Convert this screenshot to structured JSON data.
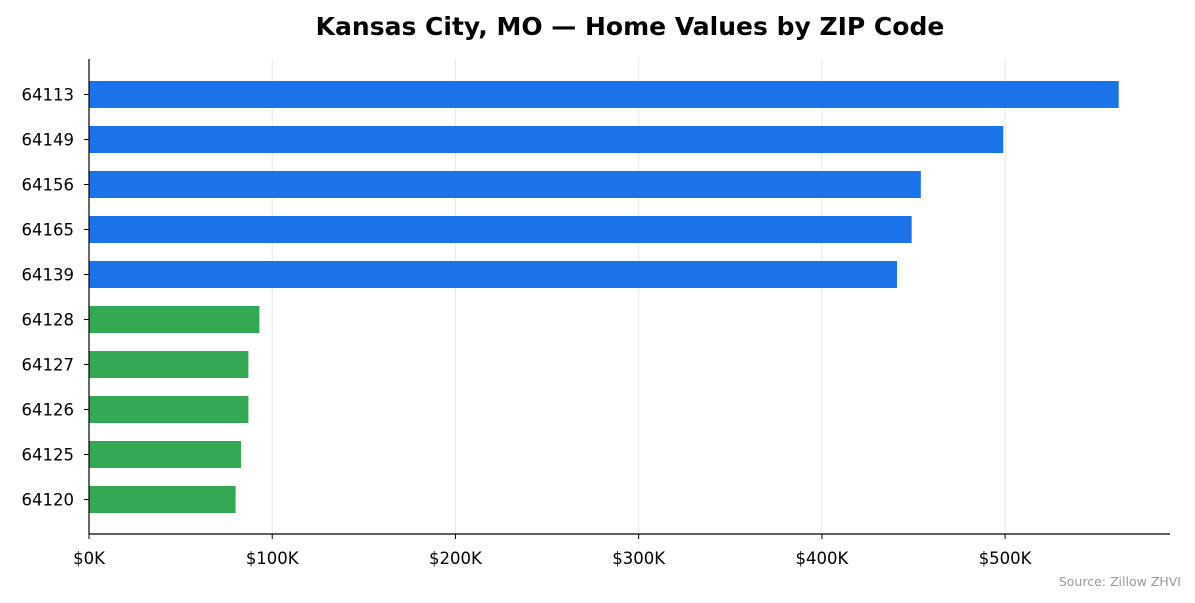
{
  "chart_data": {
    "type": "bar",
    "orientation": "horizontal",
    "title": "Kansas City, MO — Home Values by ZIP Code",
    "xlabel": "",
    "ylabel": "",
    "categories": [
      "64113",
      "64149",
      "64156",
      "64165",
      "64139",
      "64128",
      "64127",
      "64126",
      "64125",
      "64120"
    ],
    "values": [
      562000,
      499000,
      454000,
      449000,
      441000,
      93000,
      87000,
      87000,
      83000,
      80000
    ],
    "bar_colors": [
      "#1a73e8",
      "#1a73e8",
      "#1a73e8",
      "#1a73e8",
      "#1a73e8",
      "#34a853",
      "#34a853",
      "#34a853",
      "#34a853",
      "#34a853"
    ],
    "xlim": [
      0,
      590000
    ],
    "xticks": [
      0,
      100000,
      200000,
      300000,
      400000,
      500000
    ],
    "xtick_labels": [
      "$0K",
      "$100K",
      "$200K",
      "$300K",
      "$400K",
      "$500K"
    ],
    "grid": "vertical",
    "source": "Source: Zillow ZHVI"
  }
}
